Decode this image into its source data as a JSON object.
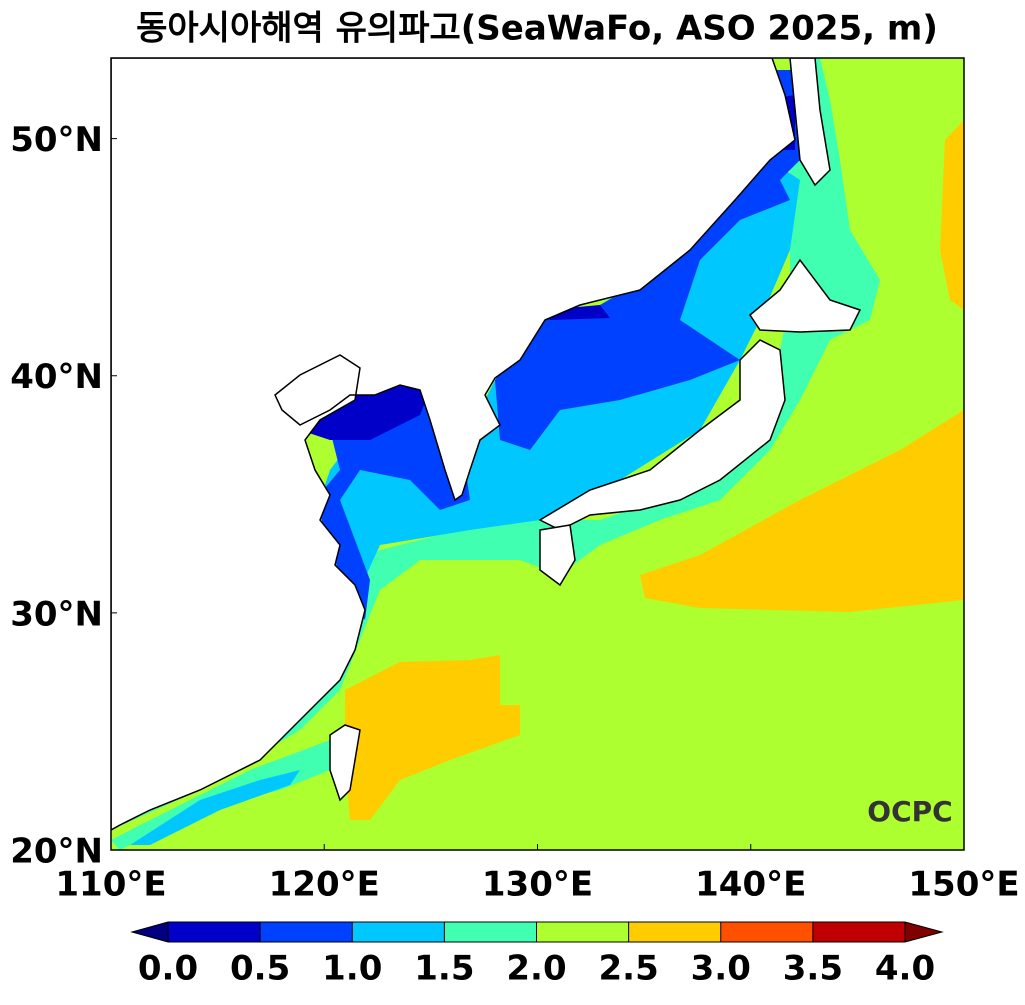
{
  "map": {
    "title": "동아시아해역 유의파고(SeaWaFo, ASO 2025, m)",
    "lon_range": [
      110,
      150
    ],
    "lat_range": [
      20,
      53.4
    ],
    "lon_ticks": [
      {
        "value": 110,
        "label": "110°E"
      },
      {
        "value": 120,
        "label": "120°E"
      },
      {
        "value": 130,
        "label": "130°E"
      },
      {
        "value": 140,
        "label": "140°E"
      },
      {
        "value": 150,
        "label": "150°E"
      }
    ],
    "lat_ticks": [
      {
        "value": 20,
        "label": "20°N"
      },
      {
        "value": 30,
        "label": "30°N"
      },
      {
        "value": 40,
        "label": "40°N"
      },
      {
        "value": 50,
        "label": "50°N"
      }
    ],
    "colorbar": {
      "ticks": [
        {
          "value": 0,
          "label": "0.0"
        },
        {
          "value": 0.5,
          "label": "0.5"
        },
        {
          "value": 1,
          "label": "1.0"
        },
        {
          "value": 1.5,
          "label": "1.5"
        },
        {
          "value": 2,
          "label": "2.0"
        },
        {
          "value": 2.5,
          "label": "2.5"
        },
        {
          "value": 3,
          "label": "3.0"
        },
        {
          "value": 3.5,
          "label": "3.5"
        },
        {
          "value": 4,
          "label": "4.0"
        }
      ],
      "colors": [
        "#0000c8",
        "#0040ff",
        "#00c8ff",
        "#40ffb0",
        "#adff2f",
        "#ffcc00",
        "#ff5000",
        "#c00000"
      ],
      "under_color": "#000080",
      "over_color": "#800000"
    },
    "logo": "OCPC"
  }
}
